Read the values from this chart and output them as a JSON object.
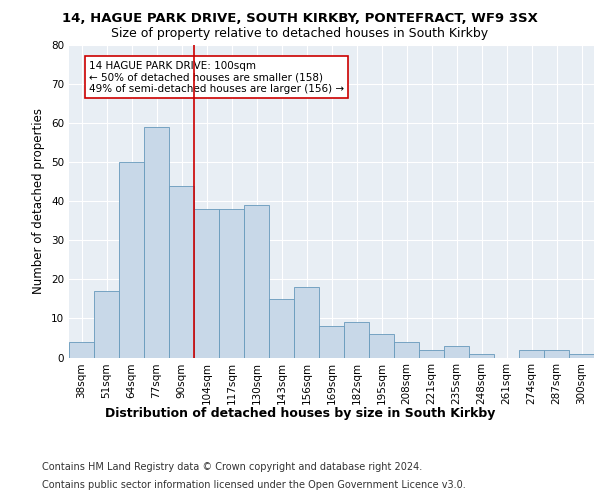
{
  "title1": "14, HAGUE PARK DRIVE, SOUTH KIRKBY, PONTEFRACT, WF9 3SX",
  "title2": "Size of property relative to detached houses in South Kirkby",
  "xlabel": "Distribution of detached houses by size in South Kirkby",
  "ylabel": "Number of detached properties",
  "categories": [
    "38sqm",
    "51sqm",
    "64sqm",
    "77sqm",
    "90sqm",
    "104sqm",
    "117sqm",
    "130sqm",
    "143sqm",
    "156sqm",
    "169sqm",
    "182sqm",
    "195sqm",
    "208sqm",
    "221sqm",
    "235sqm",
    "248sqm",
    "261sqm",
    "274sqm",
    "287sqm",
    "300sqm"
  ],
  "values": [
    4,
    17,
    50,
    59,
    44,
    38,
    38,
    39,
    15,
    18,
    8,
    9,
    6,
    4,
    2,
    3,
    1,
    0,
    2,
    2,
    1
  ],
  "bar_color": "#c8d8e8",
  "bar_edge_color": "#6699bb",
  "highlight_color": "#cc0000",
  "annotation_text": "14 HAGUE PARK DRIVE: 100sqm\n← 50% of detached houses are smaller (158)\n49% of semi-detached houses are larger (156) →",
  "annotation_box_color": "#ffffff",
  "annotation_box_edge": "#cc0000",
  "ylim": [
    0,
    80
  ],
  "yticks": [
    0,
    10,
    20,
    30,
    40,
    50,
    60,
    70,
    80
  ],
  "footer1": "Contains HM Land Registry data © Crown copyright and database right 2024.",
  "footer2": "Contains public sector information licensed under the Open Government Licence v3.0.",
  "bg_color": "#e8eef4",
  "fig_bg": "#ffffff",
  "title1_fontsize": 9.5,
  "title2_fontsize": 9.0,
  "xlabel_fontsize": 9.0,
  "ylabel_fontsize": 8.5,
  "tick_fontsize": 7.5,
  "annotation_fontsize": 7.5,
  "footer_fontsize": 7.0
}
